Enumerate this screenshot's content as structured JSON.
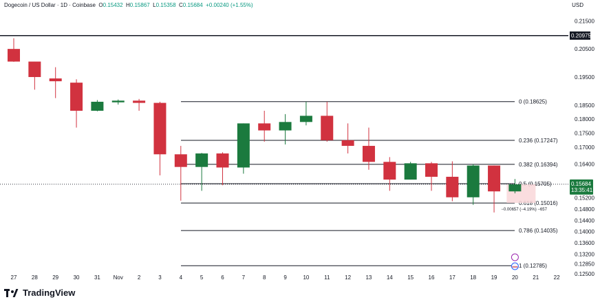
{
  "header": {
    "symbol": "Dogecoin / US Dollar · 1D · Coinbase",
    "open_label": "O",
    "open_value": "0.15432",
    "high_label": "H",
    "high_value": "0.15867",
    "low_label": "L",
    "low_value": "0.15358",
    "close_label": "C",
    "close_value": "0.15684",
    "change": "+0.00240 (+1.55%)"
  },
  "currency": "USD",
  "branding": "TradingView",
  "colors": {
    "up": "#1b7a3e",
    "down": "#d1323f",
    "fib_line": "#131722",
    "price_tag_bg": "#1b7a3e",
    "accent_green": "#089981"
  },
  "chart_data": {
    "type": "candlestick",
    "ylim": [
      0.1235,
      0.2185
    ],
    "y_ticks": [
      "0.21500",
      "0.20500",
      "0.19500",
      "0.18500",
      "0.18000",
      "0.17500",
      "0.17000",
      "0.16400",
      "0.15200",
      "0.14800",
      "0.14400",
      "0.14000",
      "0.13600",
      "0.13200",
      "0.12850",
      "0.12500"
    ],
    "x_tick_labels": [
      "27",
      "28",
      "29",
      "30",
      "31",
      "Nov",
      "2",
      "3",
      "4",
      "5",
      "6",
      "7",
      "8",
      "9",
      "10",
      "11",
      "12",
      "13",
      "14",
      "15",
      "16",
      "17",
      "18",
      "19",
      "20",
      "21",
      "22"
    ],
    "candles": [
      {
        "date": "27",
        "open": 0.205,
        "high": 0.2088,
        "low": 0.2004,
        "close": 0.2005
      },
      {
        "date": "28",
        "open": 0.2005,
        "high": 0.2005,
        "low": 0.1905,
        "close": 0.195
      },
      {
        "date": "29",
        "open": 0.1945,
        "high": 0.1985,
        "low": 0.1875,
        "close": 0.1935
      },
      {
        "date": "30",
        "open": 0.193,
        "high": 0.1942,
        "low": 0.177,
        "close": 0.183
      },
      {
        "date": "31",
        "open": 0.183,
        "high": 0.1868,
        "low": 0.1828,
        "close": 0.1862
      },
      {
        "date": "Nov",
        "open": 0.186,
        "high": 0.187,
        "low": 0.1852,
        "close": 0.1866
      },
      {
        "date": "2",
        "open": 0.1866,
        "high": 0.1872,
        "low": 0.183,
        "close": 0.1858
      },
      {
        "date": "3",
        "open": 0.1858,
        "high": 0.1862,
        "low": 0.16,
        "close": 0.1675
      },
      {
        "date": "4",
        "open": 0.1675,
        "high": 0.1705,
        "low": 0.151,
        "close": 0.163
      },
      {
        "date": "5",
        "open": 0.163,
        "high": 0.168,
        "low": 0.1545,
        "close": 0.1678
      },
      {
        "date": "6",
        "open": 0.1678,
        "high": 0.1682,
        "low": 0.1565,
        "close": 0.1628
      },
      {
        "date": "7",
        "open": 0.1628,
        "high": 0.1785,
        "low": 0.1606,
        "close": 0.1785
      },
      {
        "date": "8",
        "open": 0.1785,
        "high": 0.183,
        "low": 0.172,
        "close": 0.176
      },
      {
        "date": "9",
        "open": 0.176,
        "high": 0.1818,
        "low": 0.171,
        "close": 0.179
      },
      {
        "date": "10",
        "open": 0.179,
        "high": 0.1862,
        "low": 0.1778,
        "close": 0.1812
      },
      {
        "date": "11",
        "open": 0.1812,
        "high": 0.1862,
        "low": 0.172,
        "close": 0.1725
      },
      {
        "date": "12",
        "open": 0.1725,
        "high": 0.1785,
        "low": 0.1678,
        "close": 0.1705
      },
      {
        "date": "13",
        "open": 0.1705,
        "high": 0.177,
        "low": 0.162,
        "close": 0.1648
      },
      {
        "date": "14",
        "open": 0.1648,
        "high": 0.1665,
        "low": 0.1545,
        "close": 0.1585
      },
      {
        "date": "15",
        "open": 0.1585,
        "high": 0.1648,
        "low": 0.1585,
        "close": 0.1643
      },
      {
        "date": "16",
        "open": 0.1643,
        "high": 0.1648,
        "low": 0.1545,
        "close": 0.1595
      },
      {
        "date": "17",
        "open": 0.1595,
        "high": 0.165,
        "low": 0.1508,
        "close": 0.1522
      },
      {
        "date": "18",
        "open": 0.1522,
        "high": 0.164,
        "low": 0.1495,
        "close": 0.1635
      },
      {
        "date": "19",
        "open": 0.1635,
        "high": 0.1635,
        "low": 0.1468,
        "close": 0.1543
      },
      {
        "date": "20",
        "open": 0.1543,
        "high": 0.1587,
        "low": 0.1536,
        "close": 0.1568
      }
    ],
    "fib_levels": [
      {
        "label": "0 (0.18625)",
        "value": 0.18625
      },
      {
        "label": "0.236 (0.17247)",
        "value": 0.17247
      },
      {
        "label": "0.382 (0.16394)",
        "value": 0.16394
      },
      {
        "label": "0.5 (0.15705)",
        "value": 0.15705
      },
      {
        "label": "0.618 (0.15016)",
        "value": 0.15016
      },
      {
        "label": "0.786 (0.14035)",
        "value": 0.14035
      },
      {
        "label": "1 (0.12785)",
        "value": 0.12785
      }
    ],
    "resistance": {
      "value": 0.20975,
      "label": "0.20975"
    },
    "current_price": {
      "value": 0.15684,
      "label": "0.15684",
      "countdown": "13:35:41"
    },
    "measure_text": "−0.00657 (−4.19%) −657"
  }
}
